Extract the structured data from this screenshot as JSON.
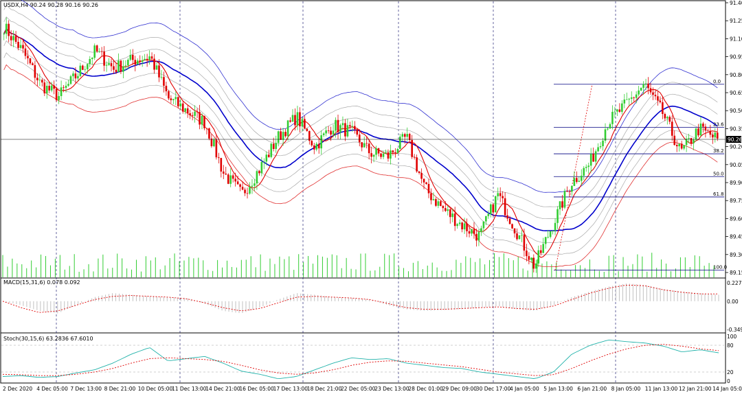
{
  "colors": {
    "bull": "#32cd32",
    "bear": "#e00000",
    "ma_blue": "#0000cc",
    "ma_red": "#e00000",
    "band_grey": "#a9a9a9",
    "envelope_blue": "#2f2fd0",
    "envelope_red": "#e03030",
    "volume": "#32cd32",
    "macd_hist": "#c0c0c0",
    "macd_signal": "#e00000",
    "stoch_main": "#20b2aa",
    "stoch_signal": "#e00000",
    "grid": "#000000",
    "fib": "#000080",
    "fib_trend": "#e00000"
  },
  "chart_data": [
    {
      "type": "candlestick",
      "title": "USDX,H4",
      "ohlc_label": "90.24 90.28 90.16 90.26",
      "last_price": "90.26",
      "ylim": [
        89.15,
        91.4
      ],
      "y_ticks": [
        "91.40",
        "91.25",
        "91.10",
        "90.95",
        "90.80",
        "90.65",
        "90.50",
        "90.35",
        "90.20",
        "90.05",
        "89.90",
        "89.75",
        "89.60",
        "89.45",
        "89.30",
        "89.15"
      ],
      "x_tick_labels": [
        "2 Dec 2020",
        "4 Dec 05:00",
        "7 Dec 13:00",
        "8 Dec 21:00",
        "10 Dec 05:00",
        "11 Dec 13:00",
        "14 Dec 21:00",
        "16 Dec 05:00",
        "17 Dec 13:00",
        "18 Dec 21:00",
        "22 Dec 05:00",
        "23 Dec 13:00",
        "28 Dec 01:00",
        "29 Dec 09:00",
        "30 Dec 17:00",
        "4 Jan 05:00",
        "5 Jan 13:00",
        "6 Jan 21:00",
        "8 Jan 05:00",
        "11 Jan 13:00",
        "12 Jan 21:00",
        "14 Jan 05:00"
      ],
      "close_path": [
        91.2,
        91.0,
        90.72,
        90.62,
        90.8,
        91.0,
        90.85,
        90.92,
        90.95,
        90.6,
        90.5,
        90.4,
        89.98,
        89.8,
        90.02,
        90.28,
        90.45,
        90.2,
        90.38,
        90.32,
        90.15,
        90.12,
        90.28,
        89.85,
        89.68,
        89.55,
        89.45,
        89.8,
        89.5,
        89.2,
        89.55,
        89.9,
        90.05,
        90.4,
        90.55,
        90.72,
        90.48,
        90.15,
        90.35,
        90.26
      ],
      "fibonacci": {
        "levels": [
          "0.0",
          "23.6",
          "38.2",
          "50.0",
          "61.8",
          "100.0"
        ],
        "prices": [
          90.72,
          90.36,
          90.14,
          89.95,
          89.78,
          89.17
        ]
      },
      "indicators": [
        "bollinger",
        "moving_average_blue",
        "moving_average_red",
        "envelopes"
      ],
      "volume": true
    },
    {
      "type": "bar",
      "title": "MACD(15,31,6) 0.078 0.092",
      "ylim": [
        -0.349,
        0.227
      ],
      "y_ticks": [
        "0.227",
        "0.00",
        "-0.349"
      ],
      "hist_path": [
        0.0,
        -0.05,
        -0.12,
        -0.15,
        -0.05,
        0.05,
        0.1,
        0.08,
        0.06,
        0.05,
        0.04,
        -0.03,
        -0.12,
        -0.15,
        -0.08,
        0.02,
        0.1,
        0.08,
        0.05,
        0.04,
        0.02,
        -0.05,
        -0.1,
        -0.12,
        -0.11,
        -0.1,
        -0.08,
        -0.06,
        -0.1,
        -0.12,
        -0.05,
        0.05,
        0.12,
        0.18,
        0.22,
        0.2,
        0.15,
        0.12,
        0.1,
        0.08
      ],
      "signal_path": [
        0.0,
        -0.08,
        -0.14,
        -0.12,
        -0.05,
        0.02,
        0.06,
        0.07,
        0.06,
        0.05,
        0.03,
        -0.02,
        -0.08,
        -0.12,
        -0.09,
        -0.02,
        0.05,
        0.06,
        0.05,
        0.04,
        0.02,
        -0.03,
        -0.08,
        -0.1,
        -0.1,
        -0.09,
        -0.08,
        -0.07,
        -0.09,
        -0.1,
        -0.06,
        0.02,
        0.1,
        0.16,
        0.2,
        0.19,
        0.14,
        0.11,
        0.09,
        0.09
      ]
    },
    {
      "type": "line",
      "title": "Stoch(30,15,6) 63.2836 67.6010",
      "ylim": [
        0,
        100
      ],
      "y_ticks": [
        "100",
        "80",
        "20",
        "0"
      ],
      "levels": [
        80,
        20
      ],
      "main_path": [
        10,
        12,
        8,
        10,
        18,
        25,
        40,
        60,
        75,
        45,
        50,
        55,
        40,
        22,
        15,
        5,
        10,
        25,
        40,
        52,
        48,
        50,
        40,
        35,
        30,
        28,
        20,
        15,
        10,
        5,
        20,
        60,
        80,
        92,
        88,
        85,
        78,
        65,
        70,
        63
      ],
      "signal_path": [
        15,
        14,
        12,
        12,
        15,
        20,
        28,
        40,
        50,
        52,
        50,
        48,
        44,
        35,
        25,
        18,
        15,
        18,
        25,
        35,
        42,
        45,
        44,
        40,
        36,
        32,
        26,
        20,
        16,
        12,
        14,
        28,
        45,
        60,
        72,
        80,
        82,
        78,
        72,
        68
      ]
    }
  ]
}
